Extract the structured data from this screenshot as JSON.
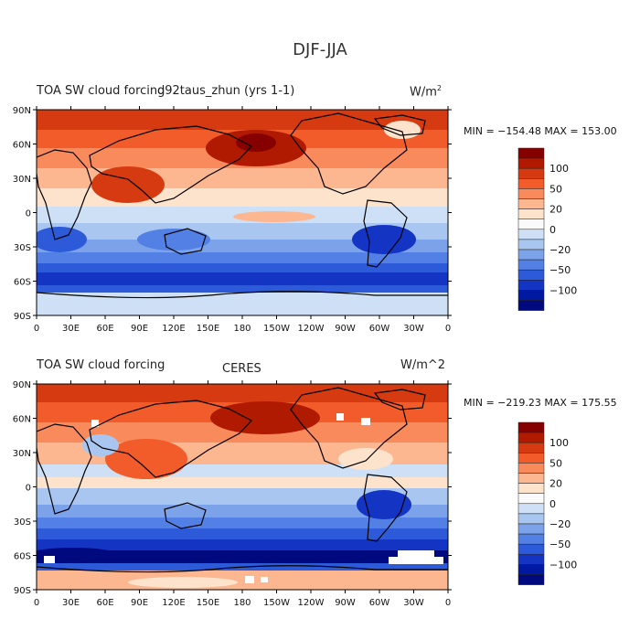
{
  "figure_title": "DJF-JJA",
  "colorbar": {
    "labels": [
      "100",
      "50",
      "20",
      "0",
      "−20",
      "−50",
      "−100"
    ],
    "colors": [
      "#870000",
      "#b01a00",
      "#d63a10",
      "#f15c2a",
      "#f98a5c",
      "#fcb690",
      "#fde2cc",
      "#fafafa",
      "#cde0f6",
      "#a8c6f0",
      "#7ca2ea",
      "#5280e4",
      "#2d5ad8",
      "#1434c4",
      "#0019a3",
      "#00097d"
    ]
  },
  "map_axes": {
    "lat_labels": [
      "90N",
      "60N",
      "30N",
      "0",
      "30S",
      "60S",
      "90S"
    ],
    "lon_labels": [
      "0",
      "30E",
      "60E",
      "90E",
      "120E",
      "150E",
      "180",
      "150W",
      "120W",
      "90W",
      "60W",
      "30W",
      "0"
    ]
  },
  "panels": [
    {
      "left_title": "TOA SW cloud forcing",
      "center_title": "d92taus_zhun (yrs 1-1)",
      "units": "W/m",
      "units_sup": "2",
      "stats": "MIN = −154.48 MAX = 153.00"
    },
    {
      "left_title": "TOA SW cloud forcing",
      "center_title": "CERES",
      "units": "W/m^2",
      "units_sup": "",
      "stats": "MIN = −219.23 MAX = 175.55"
    }
  ]
}
